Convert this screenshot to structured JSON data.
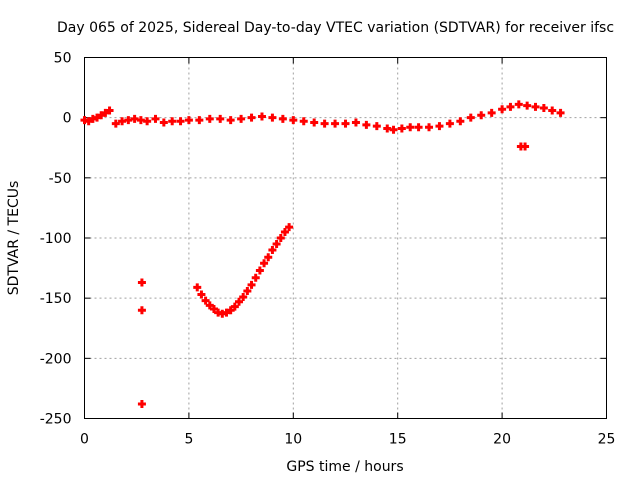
{
  "chart_data": {
    "type": "scatter",
    "title": "Day 065 of 2025, Sidereal Day-to-day VTEC variation (SDTVAR) for receiver ifsc",
    "xlabel": "GPS time / hours",
    "ylabel": "SDTVAR / TECUs",
    "xlim": [
      0,
      25
    ],
    "ylim": [
      -250,
      50
    ],
    "x_ticks": [
      0,
      5,
      10,
      15,
      20,
      25
    ],
    "y_ticks": [
      -250,
      -200,
      -150,
      -100,
      -50,
      0,
      50
    ],
    "grid": true,
    "color": "#ff0000",
    "series": [
      {
        "x": [
          0.0,
          0.2,
          0.4,
          0.6,
          0.8,
          1.0,
          1.2,
          1.5,
          1.8,
          2.1,
          2.4,
          2.7,
          3.0,
          3.4,
          3.8,
          4.2,
          4.6,
          5.0,
          5.5,
          6.0,
          6.5,
          7.0,
          7.5,
          8.0,
          8.5,
          9.0,
          9.5,
          10.0,
          10.5,
          11.0,
          11.5,
          12.0,
          12.5,
          13.0,
          13.5,
          14.0,
          14.5,
          14.8,
          15.2,
          15.6,
          16.0,
          16.5,
          17.0,
          17.5,
          18.0,
          18.5,
          19.0,
          19.5,
          20.0,
          20.4,
          20.8,
          21.2,
          21.6,
          22.0,
          22.4,
          22.8
        ],
        "y": [
          -2,
          -3,
          -1,
          0,
          2,
          4,
          6,
          -5,
          -3,
          -2,
          -1,
          -2,
          -3,
          -1,
          -4,
          -3,
          -3,
          -2,
          -2,
          -1,
          -1,
          -2,
          -1,
          0,
          1,
          0,
          -1,
          -2,
          -3,
          -4,
          -5,
          -5,
          -5,
          -4,
          -6,
          -7,
          -9,
          -10,
          -9,
          -8,
          -8,
          -8,
          -7,
          -5,
          -3,
          0,
          2,
          4,
          7,
          9,
          11,
          10,
          9,
          8,
          6,
          4
        ]
      },
      {
        "x": [
          5.4,
          5.6,
          5.8,
          6.0,
          6.2,
          6.4,
          6.6,
          6.8,
          7.0,
          7.2,
          7.4,
          7.6,
          7.8,
          8.0,
          8.2,
          8.4,
          8.6,
          8.8,
          9.0,
          9.2,
          9.4,
          9.6,
          9.8
        ],
        "y": [
          -141,
          -147,
          -152,
          -156,
          -159,
          -162,
          -163,
          -162,
          -160,
          -157,
          -153,
          -149,
          -144,
          -139,
          -133,
          -127,
          -121,
          -116,
          -110,
          -105,
          -100,
          -95,
          -91
        ]
      },
      {
        "x": [
          2.75,
          2.75,
          2.75,
          20.9,
          21.1
        ],
        "y": [
          -137,
          -160,
          -238,
          -24,
          -24
        ]
      }
    ]
  }
}
